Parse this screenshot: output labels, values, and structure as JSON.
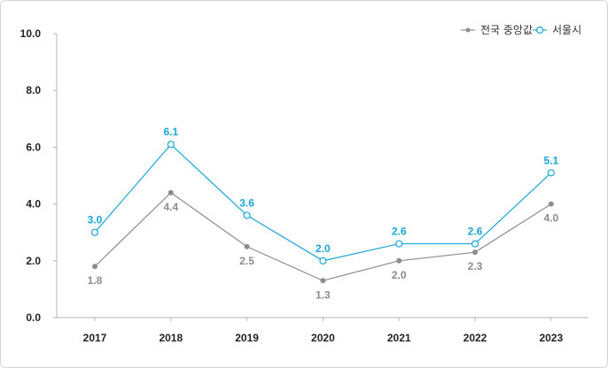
{
  "chart_data": {
    "type": "line",
    "title": "",
    "xlabel": "",
    "ylabel": "",
    "ylim": [
      0,
      10
    ],
    "yticks": [
      "0.0",
      "2.0",
      "4.0",
      "6.0",
      "8.0",
      "10.0"
    ],
    "categories": [
      "2017",
      "2018",
      "2019",
      "2020",
      "2021",
      "2022",
      "2023"
    ],
    "legend_position": "top-right",
    "grid": false,
    "series": [
      {
        "name": "전국 중앙값",
        "color": "#8c8c8c",
        "marker": "filled-circle",
        "values": [
          1.8,
          4.4,
          2.5,
          1.3,
          2.0,
          2.3,
          4.0
        ],
        "labels": [
          "1.8",
          "4.4",
          "2.5",
          "1.3",
          "2.0",
          "2.3",
          "4.0"
        ]
      },
      {
        "name": "서울시",
        "color": "#1aa6d9",
        "marker": "hollow-circle",
        "values": [
          3.0,
          6.1,
          3.6,
          2.0,
          2.6,
          2.6,
          5.1
        ],
        "labels": [
          "3.0",
          "6.1",
          "3.6",
          "2.0",
          "2.6",
          "2.6",
          "5.1"
        ]
      }
    ]
  }
}
